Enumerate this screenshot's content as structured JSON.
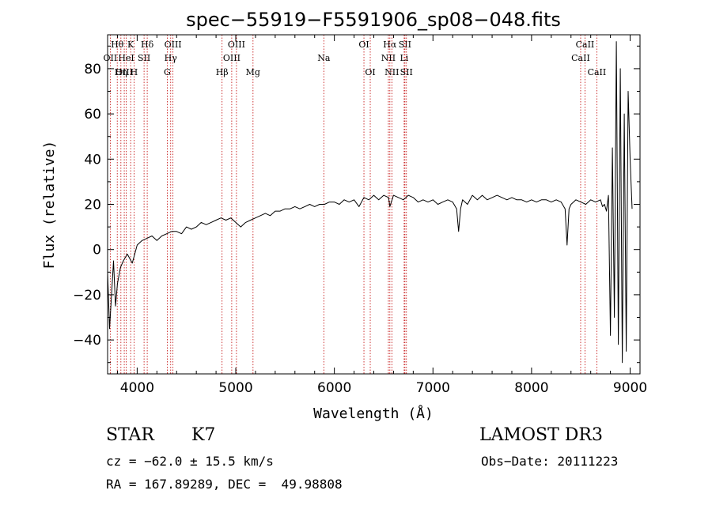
{
  "chart_data": {
    "type": "line",
    "title": "spec−55919−F5591906_sp08−048.fits",
    "xlabel": "Wavelength (Å)",
    "ylabel": "Flux (relative)",
    "xlim": [
      3700,
      9100
    ],
    "ylim": [
      -55,
      95
    ],
    "x_ticks": [
      4000,
      5000,
      6000,
      7000,
      8000,
      9000
    ],
    "y_ticks": [
      -40,
      -20,
      0,
      20,
      40,
      60,
      80
    ],
    "y_tick_labels": [
      "−40",
      "−20",
      "0",
      "20",
      "40",
      "60",
      "80"
    ],
    "line_color": "#000000",
    "marker_color": "#c00000",
    "series": [
      {
        "name": "flux",
        "x": [
          3700,
          3720,
          3740,
          3760,
          3780,
          3800,
          3830,
          3860,
          3900,
          3950,
          4000,
          4050,
          4100,
          4150,
          4200,
          4250,
          4300,
          4350,
          4400,
          4450,
          4500,
          4550,
          4600,
          4650,
          4700,
          4750,
          4800,
          4850,
          4900,
          4950,
          5000,
          5050,
          5100,
          5150,
          5200,
          5250,
          5300,
          5350,
          5400,
          5450,
          5500,
          5550,
          5600,
          5650,
          5700,
          5750,
          5800,
          5850,
          5900,
          5950,
          6000,
          6050,
          6100,
          6150,
          6200,
          6250,
          6300,
          6350,
          6400,
          6450,
          6500,
          6550,
          6563,
          6600,
          6650,
          6700,
          6750,
          6800,
          6850,
          6900,
          6950,
          7000,
          7050,
          7100,
          7150,
          7200,
          7240,
          7260,
          7280,
          7300,
          7350,
          7400,
          7450,
          7500,
          7550,
          7600,
          7650,
          7700,
          7750,
          7800,
          7850,
          7900,
          7950,
          8000,
          8050,
          8100,
          8150,
          8200,
          8250,
          8300,
          8340,
          8360,
          8380,
          8400,
          8450,
          8500,
          8550,
          8600,
          8650,
          8700,
          8720,
          8740,
          8760,
          8780,
          8800,
          8820,
          8840,
          8860,
          8880,
          8900,
          8920,
          8940,
          8960,
          8980,
          9000,
          9020
        ],
        "values": [
          -10,
          -35,
          -20,
          -5,
          -25,
          -15,
          -8,
          -5,
          -2,
          -6,
          2,
          4,
          5,
          6,
          4,
          6,
          7,
          8,
          8,
          7,
          10,
          9,
          10,
          12,
          11,
          12,
          13,
          14,
          13,
          14,
          12,
          10,
          12,
          13,
          14,
          15,
          16,
          15,
          17,
          17,
          18,
          18,
          19,
          18,
          19,
          20,
          19,
          20,
          20,
          21,
          21,
          20,
          22,
          21,
          22,
          19,
          23,
          22,
          24,
          22,
          24,
          23,
          19,
          24,
          23,
          22,
          24,
          23,
          21,
          22,
          21,
          22,
          20,
          21,
          22,
          21,
          18,
          8,
          18,
          22,
          20,
          24,
          22,
          24,
          22,
          23,
          24,
          23,
          22,
          23,
          22,
          22,
          21,
          22,
          21,
          22,
          22,
          21,
          22,
          21,
          18,
          2,
          18,
          20,
          22,
          21,
          20,
          22,
          21,
          22,
          19,
          20,
          17,
          24,
          -38,
          45,
          -30,
          92,
          -42,
          80,
          -50,
          60,
          -45,
          70,
          40,
          18
        ]
      }
    ],
    "line_markers": [
      {
        "label": "Hθ",
        "wavelength": 3798,
        "row": 0
      },
      {
        "label": "OII",
        "wavelength": 3727,
        "row": 1
      },
      {
        "label": "OIII",
        "wavelength": 3869,
        "row": 2
      },
      {
        "label": "K",
        "wavelength": 3934,
        "row": 0
      },
      {
        "label": "HeI",
        "wavelength": 3889,
        "row": 1
      },
      {
        "label": "Hη",
        "wavelength": 3835,
        "row": 2
      },
      {
        "label": "SII",
        "wavelength": 4070,
        "row": 1
      },
      {
        "label": "H",
        "wavelength": 3968,
        "row": 2
      },
      {
        "label": "Hδ",
        "wavelength": 4102,
        "row": 0
      },
      {
        "label": "OIII",
        "wavelength": 4363,
        "row": 0
      },
      {
        "label": "Hγ",
        "wavelength": 4340,
        "row": 1
      },
      {
        "label": "G",
        "wavelength": 4305,
        "row": 2
      },
      {
        "label": "Hβ",
        "wavelength": 4861,
        "row": 2
      },
      {
        "label": "OIII",
        "wavelength": 5007,
        "row": 0
      },
      {
        "label": "OIII",
        "wavelength": 4959,
        "row": 1
      },
      {
        "label": "Mg",
        "wavelength": 5175,
        "row": 2
      },
      {
        "label": "Na",
        "wavelength": 5893,
        "row": 1
      },
      {
        "label": "OI",
        "wavelength": 6300,
        "row": 0
      },
      {
        "label": "OI",
        "wavelength": 6364,
        "row": 2
      },
      {
        "label": "Hα",
        "wavelength": 6563,
        "row": 0
      },
      {
        "label": "SII",
        "wavelength": 6716,
        "row": 0
      },
      {
        "label": "NII",
        "wavelength": 6548,
        "row": 1
      },
      {
        "label": "Li",
        "wavelength": 6708,
        "row": 1
      },
      {
        "label": "NII",
        "wavelength": 6583,
        "row": 2
      },
      {
        "label": "SII",
        "wavelength": 6731,
        "row": 2
      },
      {
        "label": "CaII",
        "wavelength": 8542,
        "row": 0
      },
      {
        "label": "CaII",
        "wavelength": 8498,
        "row": 1
      },
      {
        "label": "CaII",
        "wavelength": 8662,
        "row": 2
      }
    ]
  },
  "info": {
    "class_label": "STAR",
    "subclass": "K7",
    "survey": "LAMOST DR3",
    "redshift_line": "cz = −62.0 ± 15.5 km/s",
    "obs_date": "Obs−Date: 20111223",
    "coords_line": "RA = 167.89289, DEC =  49.98808"
  }
}
